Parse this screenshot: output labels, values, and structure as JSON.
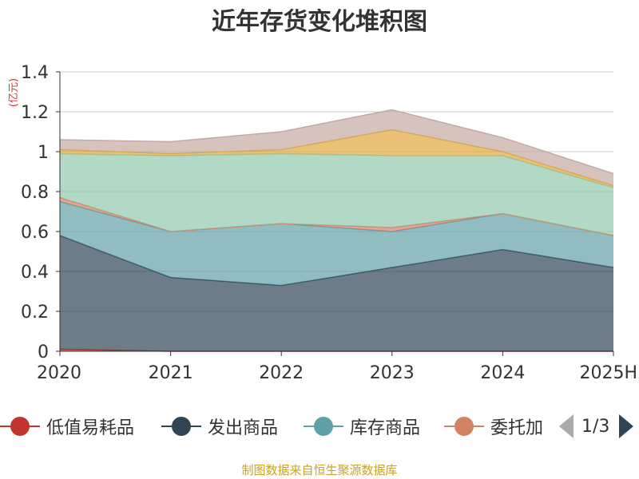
{
  "chart_data": {
    "type": "area",
    "stacked": true,
    "title": "近年存货变化堆积图",
    "unit_label": "(亿元)",
    "categories": [
      "2020",
      "2021",
      "2022",
      "2023",
      "2024",
      "2025H"
    ],
    "ylim": [
      0,
      1.4
    ],
    "yticks": [
      0,
      0.2,
      0.4,
      0.6,
      0.8,
      1,
      1.2,
      1.4
    ],
    "ytick_labels": [
      "0",
      "0.2",
      "0.4",
      "0.6",
      "0.8",
      "1",
      "1.2",
      "1.4"
    ],
    "grid": true,
    "series": [
      {
        "name": "低值易耗品",
        "color": "#c23531",
        "values": [
          0.01,
          0.0,
          0.0,
          0.0,
          0.0,
          0.0
        ]
      },
      {
        "name": "发出商品",
        "color": "#2f4554",
        "values": [
          0.57,
          0.37,
          0.33,
          0.42,
          0.51,
          0.42
        ]
      },
      {
        "name": "库存商品",
        "color": "#61a0a8",
        "values": [
          0.17,
          0.23,
          0.31,
          0.18,
          0.18,
          0.16
        ]
      },
      {
        "name": "委托加工物资",
        "color": "#d48265",
        "values": [
          0.02,
          0.0,
          0.0,
          0.02,
          0.0,
          0.0
        ]
      },
      {
        "color": "#91c7ae",
        "values": [
          0.22,
          0.38,
          0.35,
          0.36,
          0.29,
          0.24
        ]
      },
      {
        "color": "#e0a83e",
        "values": [
          0.02,
          0.01,
          0.02,
          0.13,
          0.02,
          0.01
        ]
      },
      {
        "color": "#c4a9a3",
        "values": [
          0.05,
          0.06,
          0.09,
          0.1,
          0.07,
          0.06
        ]
      }
    ],
    "legend": {
      "position": "bottom",
      "visible_items": [
        "低值易耗品",
        "发出商品",
        "库存商品",
        "委托加"
      ],
      "page": "1/3"
    }
  },
  "source": "制图数据来自恒生聚源数据库"
}
